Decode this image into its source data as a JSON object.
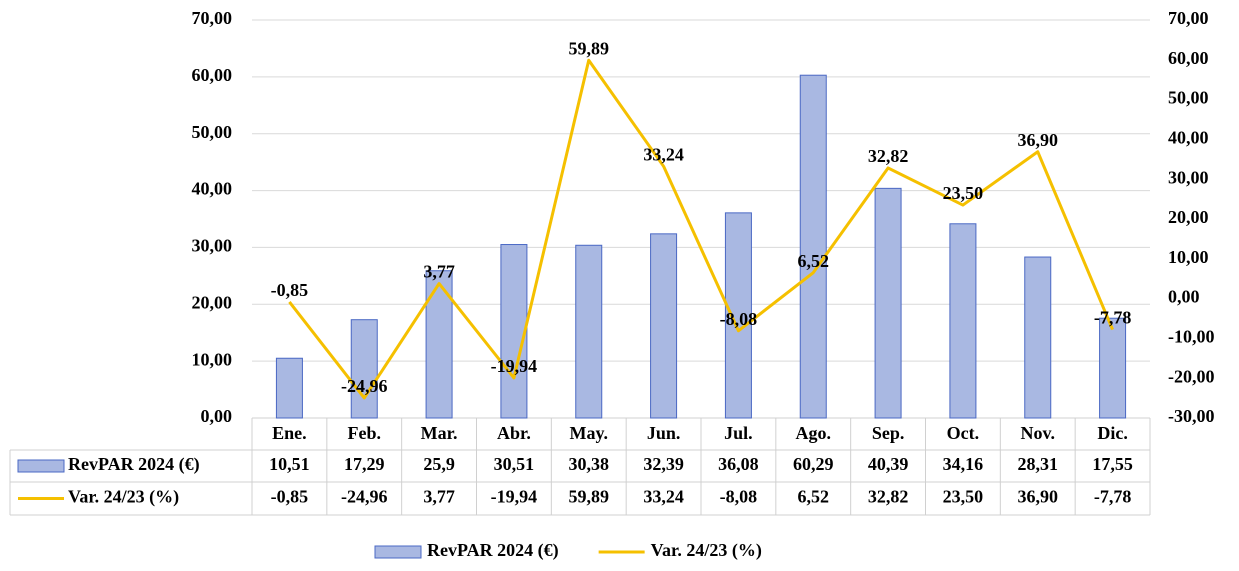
{
  "chart_data": {
    "type": "bar-line-table",
    "categories": [
      "Ene.",
      "Feb.",
      "Mar.",
      "Abr.",
      "May.",
      "Jun.",
      "Jul.",
      "Ago.",
      "Sep.",
      "Oct.",
      "Nov.",
      "Dic."
    ],
    "series": [
      {
        "name": "RevPAR 2024 (€)",
        "type": "bar",
        "color": "#a9b8e2",
        "stroke": "#4a68c4",
        "values": [
          10.51,
          17.29,
          25.9,
          30.51,
          30.38,
          32.39,
          36.08,
          60.29,
          40.39,
          34.16,
          28.31,
          17.55
        ],
        "value_labels": [
          "10,51",
          "17,29",
          "25,9",
          "30,51",
          "30,38",
          "32,39",
          "36,08",
          "60,29",
          "40,39",
          "34,16",
          "28,31",
          "17,55"
        ]
      },
      {
        "name": "Var. 24/23 (%)",
        "type": "line",
        "axis": "y2",
        "color": "#f5c000",
        "values": [
          -0.85,
          -24.96,
          3.77,
          -19.94,
          59.89,
          33.24,
          -8.08,
          6.52,
          32.82,
          23.5,
          36.9,
          -7.78
        ],
        "value_labels": [
          "-0,85",
          "-24,96",
          "3,77",
          "-19,94",
          "59,89",
          "33,24",
          "-8,08",
          "6,52",
          "32,82",
          "23,50",
          "36,90",
          "-7,78"
        ]
      }
    ],
    "ylim": [
      0,
      70
    ],
    "yticks": [
      {
        "value": 0,
        "label": "0,00"
      },
      {
        "value": 10,
        "label": "10,00"
      },
      {
        "value": 20,
        "label": "20,00"
      },
      {
        "value": 30,
        "label": "30,00"
      },
      {
        "value": 40,
        "label": "40,00"
      },
      {
        "value": 50,
        "label": "50,00"
      },
      {
        "value": 60,
        "label": "60,00"
      },
      {
        "value": 70,
        "label": "70,00"
      }
    ],
    "y2lim": [
      -30,
      70
    ],
    "y2ticks": [
      {
        "value": -30,
        "label": "-30,00"
      },
      {
        "value": -20,
        "label": "-20,00"
      },
      {
        "value": -10,
        "label": "-10,00"
      },
      {
        "value": 0,
        "label": "0,00"
      },
      {
        "value": 10,
        "label": "10,00"
      },
      {
        "value": 20,
        "label": "20,00"
      },
      {
        "value": 30,
        "label": "30,00"
      },
      {
        "value": 40,
        "label": "40,00"
      },
      {
        "value": 50,
        "label": "50,00"
      },
      {
        "value": 60,
        "label": "60,00"
      },
      {
        "value": 70,
        "label": "70,00"
      }
    ],
    "grid": true,
    "legend": "bottom"
  }
}
